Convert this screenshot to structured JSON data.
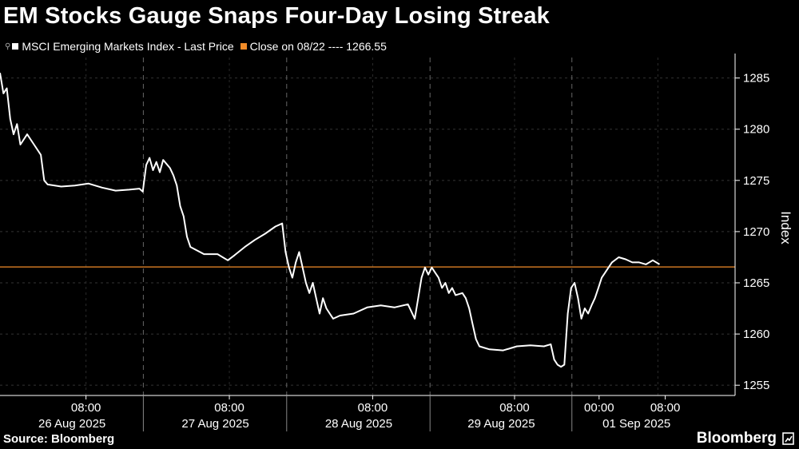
{
  "header": {
    "title": "EM Stocks Gauge Snaps Four-Day Losing Streak"
  },
  "legend": {
    "pin_icon": "pin-icon",
    "items": [
      {
        "label": "MSCI Emerging Markets Index - Last Price",
        "color": "#ffffff"
      },
      {
        "label": "Close on 08/22 ---- 1266.55",
        "color": "#f28c28"
      }
    ]
  },
  "footer": {
    "source": "Source: Bloomberg",
    "brand": "Bloomberg"
  },
  "chart_data": {
    "type": "line",
    "title": "EM Stocks Gauge Snaps Four-Day Losing Streak",
    "ylabel": "Index",
    "ylim": [
      1254,
      1287
    ],
    "yticks": [
      1255,
      1260,
      1265,
      1270,
      1275,
      1280,
      1285
    ],
    "x_time_labels": [
      "08:00",
      "08:00",
      "08:00",
      "08:00",
      "00:00",
      "08:00"
    ],
    "x_date_labels": [
      "26 Aug 2025",
      "27 Aug 2025",
      "28 Aug 2025",
      "29 Aug 2025",
      "01 Sep 2025"
    ],
    "grid": true,
    "reference_line": {
      "label": "Close on 08/22",
      "value": 1266.55,
      "color": "#f28c28"
    },
    "series": [
      {
        "name": "MSCI Emerging Markets Index - Last Price",
        "color": "#ffffff",
        "points": [
          [
            0.0,
            1285.5
          ],
          [
            0.005,
            1283.5
          ],
          [
            0.01,
            1284.0
          ],
          [
            0.015,
            1281.0
          ],
          [
            0.02,
            1279.5
          ],
          [
            0.025,
            1280.5
          ],
          [
            0.03,
            1278.5
          ],
          [
            0.04,
            1279.5
          ],
          [
            0.05,
            1278.5
          ],
          [
            0.06,
            1277.5
          ],
          [
            0.065,
            1275.0
          ],
          [
            0.07,
            1274.6
          ],
          [
            0.09,
            1274.4
          ],
          [
            0.11,
            1274.5
          ],
          [
            0.13,
            1274.7
          ],
          [
            0.15,
            1274.3
          ],
          [
            0.17,
            1274.0
          ],
          [
            0.19,
            1274.1
          ],
          [
            0.205,
            1274.2
          ],
          [
            0.21,
            1273.9
          ],
          [
            0.215,
            1276.5
          ],
          [
            0.22,
            1277.2
          ],
          [
            0.225,
            1276.0
          ],
          [
            0.23,
            1276.8
          ],
          [
            0.235,
            1275.8
          ],
          [
            0.24,
            1277.0
          ],
          [
            0.25,
            1276.2
          ],
          [
            0.255,
            1275.5
          ],
          [
            0.26,
            1274.5
          ],
          [
            0.265,
            1272.5
          ],
          [
            0.27,
            1271.5
          ],
          [
            0.275,
            1269.5
          ],
          [
            0.28,
            1268.5
          ],
          [
            0.3,
            1267.8
          ],
          [
            0.32,
            1267.8
          ],
          [
            0.335,
            1267.2
          ],
          [
            0.345,
            1267.7
          ],
          [
            0.36,
            1268.5
          ],
          [
            0.375,
            1269.2
          ],
          [
            0.39,
            1269.8
          ],
          [
            0.405,
            1270.5
          ],
          [
            0.415,
            1270.8
          ],
          [
            0.42,
            1268.0
          ],
          [
            0.425,
            1266.5
          ],
          [
            0.43,
            1265.5
          ],
          [
            0.435,
            1267.0
          ],
          [
            0.44,
            1268.0
          ],
          [
            0.445,
            1266.5
          ],
          [
            0.45,
            1265.0
          ],
          [
            0.455,
            1264.0
          ],
          [
            0.46,
            1265.0
          ],
          [
            0.465,
            1263.5
          ],
          [
            0.47,
            1262.0
          ],
          [
            0.475,
            1263.5
          ],
          [
            0.48,
            1262.5
          ],
          [
            0.485,
            1262.0
          ],
          [
            0.49,
            1261.5
          ],
          [
            0.5,
            1261.8
          ],
          [
            0.52,
            1262.0
          ],
          [
            0.54,
            1262.6
          ],
          [
            0.56,
            1262.8
          ],
          [
            0.58,
            1262.6
          ],
          [
            0.6,
            1262.9
          ],
          [
            0.61,
            1261.5
          ],
          [
            0.615,
            1263.5
          ],
          [
            0.62,
            1265.5
          ],
          [
            0.625,
            1266.5
          ],
          [
            0.63,
            1265.8
          ],
          [
            0.635,
            1266.5
          ],
          [
            0.64,
            1266.0
          ],
          [
            0.645,
            1265.5
          ],
          [
            0.65,
            1264.5
          ],
          [
            0.655,
            1265.0
          ],
          [
            0.66,
            1264.0
          ],
          [
            0.665,
            1264.5
          ],
          [
            0.67,
            1263.8
          ],
          [
            0.68,
            1264.0
          ],
          [
            0.685,
            1263.5
          ],
          [
            0.69,
            1262.5
          ],
          [
            0.695,
            1261.0
          ],
          [
            0.7,
            1259.5
          ],
          [
            0.705,
            1258.8
          ],
          [
            0.72,
            1258.5
          ],
          [
            0.74,
            1258.4
          ],
          [
            0.76,
            1258.8
          ],
          [
            0.78,
            1258.9
          ],
          [
            0.8,
            1258.8
          ],
          [
            0.81,
            1259.0
          ],
          [
            0.815,
            1257.5
          ],
          [
            0.82,
            1257.0
          ],
          [
            0.825,
            1256.8
          ],
          [
            0.83,
            1257.0
          ],
          [
            0.835,
            1262.0
          ],
          [
            0.84,
            1264.5
          ],
          [
            0.845,
            1265.0
          ],
          [
            0.85,
            1263.5
          ],
          [
            0.855,
            1261.5
          ],
          [
            0.86,
            1262.5
          ],
          [
            0.865,
            1262.0
          ],
          [
            0.87,
            1262.8
          ],
          [
            0.875,
            1263.5
          ],
          [
            0.88,
            1264.5
          ],
          [
            0.885,
            1265.5
          ],
          [
            0.89,
            1266.0
          ],
          [
            0.895,
            1266.5
          ],
          [
            0.9,
            1267.0
          ],
          [
            0.91,
            1267.5
          ],
          [
            0.92,
            1267.3
          ],
          [
            0.93,
            1267.0
          ],
          [
            0.94,
            1267.0
          ],
          [
            0.95,
            1266.8
          ],
          [
            0.96,
            1267.2
          ],
          [
            0.97,
            1266.8
          ]
        ]
      }
    ]
  }
}
